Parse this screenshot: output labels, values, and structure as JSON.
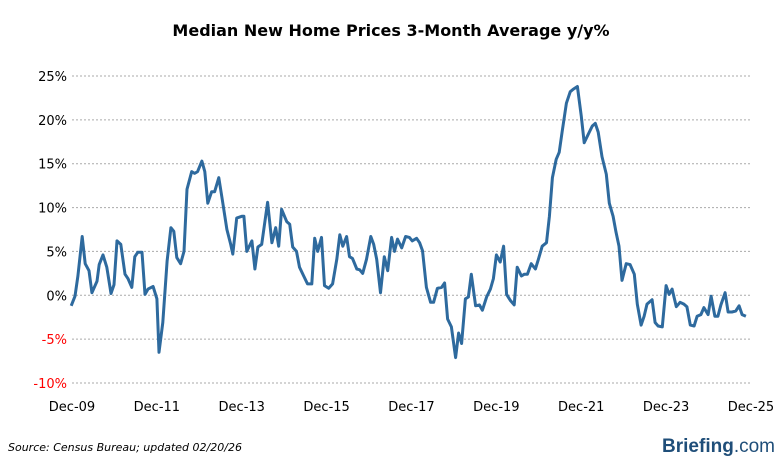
{
  "chart_data": {
    "type": "line",
    "title": "Median New Home Prices 3-Month Average y/y%",
    "xlabel": "",
    "ylabel": "",
    "xlim": [
      2009.92,
      2025.92
    ],
    "ylim": [
      -10,
      25
    ],
    "grid": true,
    "yticks": [
      {
        "value": 25,
        "label": "25%"
      },
      {
        "value": 20,
        "label": "20%"
      },
      {
        "value": 15,
        "label": "15%"
      },
      {
        "value": 10,
        "label": "10%"
      },
      {
        "value": 5,
        "label": "5%"
      },
      {
        "value": 0,
        "label": "0%"
      },
      {
        "value": -5,
        "label": "-5%"
      },
      {
        "value": -10,
        "label": "-10%"
      }
    ],
    "xticks": [
      {
        "value": 2009.92,
        "label": "Dec-09"
      },
      {
        "value": 2011.92,
        "label": "Dec-11"
      },
      {
        "value": 2013.92,
        "label": "Dec-13"
      },
      {
        "value": 2015.92,
        "label": "Dec-15"
      },
      {
        "value": 2017.92,
        "label": "Dec-17"
      },
      {
        "value": 2019.92,
        "label": "Dec-19"
      },
      {
        "value": 2021.92,
        "label": "Dec-21"
      },
      {
        "value": 2023.92,
        "label": "Dec-23"
      },
      {
        "value": 2025.92,
        "label": "Dec-25"
      }
    ],
    "colors": {
      "line": "#2e6a9e",
      "positive_tick": "#000000",
      "negative_tick": "#ff0000",
      "grid": "#aaaaaa"
    },
    "series": [
      {
        "points": [
          [
            2009.9,
            -1.2
          ],
          [
            2009.99,
            -0.1
          ],
          [
            2010.06,
            2.2
          ],
          [
            2010.16,
            6.7
          ],
          [
            2010.23,
            3.6
          ],
          [
            2010.32,
            2.8
          ],
          [
            2010.39,
            0.3
          ],
          [
            2010.51,
            1.6
          ],
          [
            2010.56,
            3.5
          ],
          [
            2010.65,
            4.6
          ],
          [
            2010.74,
            3.2
          ],
          [
            2010.84,
            0.2
          ],
          [
            2010.91,
            1.2
          ],
          [
            2010.98,
            6.2
          ],
          [
            2011.07,
            5.8
          ],
          [
            2011.17,
            2.4
          ],
          [
            2011.24,
            1.9
          ],
          [
            2011.33,
            0.9
          ],
          [
            2011.4,
            4.4
          ],
          [
            2011.47,
            4.9
          ],
          [
            2011.57,
            4.9
          ],
          [
            2011.64,
            0.1
          ],
          [
            2011.71,
            0.7
          ],
          [
            2011.83,
            1.0
          ],
          [
            2011.92,
            -0.4
          ],
          [
            2011.97,
            -6.5
          ],
          [
            2012.06,
            -3.1
          ],
          [
            2012.16,
            3.9
          ],
          [
            2012.25,
            7.7
          ],
          [
            2012.32,
            7.3
          ],
          [
            2012.39,
            4.3
          ],
          [
            2012.48,
            3.6
          ],
          [
            2012.56,
            5.0
          ],
          [
            2012.63,
            12.1
          ],
          [
            2012.74,
            14.1
          ],
          [
            2012.81,
            13.9
          ],
          [
            2012.88,
            14.1
          ],
          [
            2012.98,
            15.3
          ],
          [
            2013.05,
            14.1
          ],
          [
            2013.12,
            10.5
          ],
          [
            2013.21,
            11.8
          ],
          [
            2013.28,
            11.8
          ],
          [
            2013.38,
            13.4
          ],
          [
            2013.47,
            10.6
          ],
          [
            2013.57,
            7.5
          ],
          [
            2013.66,
            5.8
          ],
          [
            2013.71,
            4.7
          ],
          [
            2013.8,
            8.8
          ],
          [
            2013.92,
            9.0
          ],
          [
            2013.97,
            9.0
          ],
          [
            2014.04,
            5.0
          ],
          [
            2014.16,
            6.2
          ],
          [
            2014.23,
            3.0
          ],
          [
            2014.3,
            5.5
          ],
          [
            2014.39,
            5.8
          ],
          [
            2014.53,
            10.6
          ],
          [
            2014.63,
            6.0
          ],
          [
            2014.72,
            7.7
          ],
          [
            2014.79,
            5.6
          ],
          [
            2014.86,
            9.8
          ],
          [
            2014.98,
            8.4
          ],
          [
            2015.05,
            8.1
          ],
          [
            2015.12,
            5.5
          ],
          [
            2015.21,
            5.0
          ],
          [
            2015.28,
            3.2
          ],
          [
            2015.38,
            2.2
          ],
          [
            2015.47,
            1.3
          ],
          [
            2015.57,
            1.3
          ],
          [
            2015.64,
            6.5
          ],
          [
            2015.71,
            5.0
          ],
          [
            2015.8,
            6.6
          ],
          [
            2015.87,
            1.1
          ],
          [
            2015.97,
            0.8
          ],
          [
            2016.06,
            1.3
          ],
          [
            2016.16,
            4.1
          ],
          [
            2016.23,
            6.9
          ],
          [
            2016.3,
            5.6
          ],
          [
            2016.39,
            6.7
          ],
          [
            2016.46,
            4.4
          ],
          [
            2016.53,
            4.2
          ],
          [
            2016.63,
            3.0
          ],
          [
            2016.7,
            2.9
          ],
          [
            2016.77,
            2.5
          ],
          [
            2016.86,
            4.1
          ],
          [
            2016.96,
            6.7
          ],
          [
            2017.03,
            5.8
          ],
          [
            2017.1,
            4.1
          ],
          [
            2017.19,
            0.3
          ],
          [
            2017.28,
            4.4
          ],
          [
            2017.36,
            2.8
          ],
          [
            2017.45,
            6.6
          ],
          [
            2017.52,
            5.0
          ],
          [
            2017.59,
            6.4
          ],
          [
            2017.69,
            5.4
          ],
          [
            2017.78,
            6.7
          ],
          [
            2017.87,
            6.6
          ],
          [
            2017.94,
            6.2
          ],
          [
            2018.04,
            6.5
          ],
          [
            2018.11,
            6.0
          ],
          [
            2018.18,
            5.1
          ],
          [
            2018.27,
            0.9
          ],
          [
            2018.37,
            -0.8
          ],
          [
            2018.44,
            -0.8
          ],
          [
            2018.53,
            0.8
          ],
          [
            2018.63,
            0.9
          ],
          [
            2018.7,
            1.4
          ],
          [
            2018.77,
            -2.7
          ],
          [
            2018.86,
            -3.6
          ],
          [
            2018.96,
            -7.1
          ],
          [
            2019.03,
            -4.3
          ],
          [
            2019.1,
            -5.5
          ],
          [
            2019.19,
            -0.4
          ],
          [
            2019.26,
            -0.2
          ],
          [
            2019.33,
            2.4
          ],
          [
            2019.43,
            -1.2
          ],
          [
            2019.52,
            -1.1
          ],
          [
            2019.59,
            -1.7
          ],
          [
            2019.69,
            -0.2
          ],
          [
            2019.78,
            0.7
          ],
          [
            2019.85,
            1.9
          ],
          [
            2019.92,
            4.6
          ],
          [
            2020.01,
            3.8
          ],
          [
            2020.09,
            5.6
          ],
          [
            2020.16,
            0.1
          ],
          [
            2020.25,
            -0.6
          ],
          [
            2020.34,
            -1.1
          ],
          [
            2020.41,
            3.2
          ],
          [
            2020.51,
            2.2
          ],
          [
            2020.58,
            2.4
          ],
          [
            2020.65,
            2.4
          ],
          [
            2020.74,
            3.6
          ],
          [
            2020.84,
            3.0
          ],
          [
            2020.91,
            4.1
          ],
          [
            2021.0,
            5.6
          ],
          [
            2021.1,
            6.0
          ],
          [
            2021.17,
            9.0
          ],
          [
            2021.24,
            13.4
          ],
          [
            2021.33,
            15.5
          ],
          [
            2021.4,
            16.3
          ],
          [
            2021.47,
            18.7
          ],
          [
            2021.57,
            21.9
          ],
          [
            2021.66,
            23.2
          ],
          [
            2021.73,
            23.5
          ],
          [
            2021.83,
            23.8
          ],
          [
            2021.92,
            20.4
          ],
          [
            2021.99,
            17.4
          ],
          [
            2022.11,
            18.6
          ],
          [
            2022.18,
            19.3
          ],
          [
            2022.25,
            19.6
          ],
          [
            2022.32,
            18.6
          ],
          [
            2022.41,
            15.8
          ],
          [
            2022.51,
            13.8
          ],
          [
            2022.58,
            10.5
          ],
          [
            2022.67,
            9.0
          ],
          [
            2022.74,
            7.2
          ],
          [
            2022.81,
            5.6
          ],
          [
            2022.88,
            1.7
          ],
          [
            2022.98,
            3.6
          ],
          [
            2023.07,
            3.5
          ],
          [
            2023.17,
            2.4
          ],
          [
            2023.24,
            -1.0
          ],
          [
            2023.33,
            -3.4
          ],
          [
            2023.4,
            -2.4
          ],
          [
            2023.47,
            -1.0
          ],
          [
            2023.59,
            -0.5
          ],
          [
            2023.66,
            -3.1
          ],
          [
            2023.73,
            -3.5
          ],
          [
            2023.83,
            -3.6
          ],
          [
            2023.92,
            1.1
          ],
          [
            2023.99,
            0.1
          ],
          [
            2024.06,
            0.7
          ],
          [
            2024.16,
            -1.3
          ],
          [
            2024.25,
            -0.8
          ],
          [
            2024.34,
            -1.0
          ],
          [
            2024.41,
            -1.3
          ],
          [
            2024.49,
            -3.4
          ],
          [
            2024.58,
            -3.5
          ],
          [
            2024.65,
            -2.4
          ],
          [
            2024.74,
            -2.2
          ],
          [
            2024.81,
            -1.4
          ],
          [
            2024.91,
            -2.2
          ],
          [
            2024.98,
            -0.1
          ],
          [
            2025.07,
            -2.4
          ],
          [
            2025.14,
            -2.4
          ],
          [
            2025.21,
            -1.1
          ],
          [
            2025.31,
            0.3
          ],
          [
            2025.38,
            -1.9
          ],
          [
            2025.47,
            -1.9
          ],
          [
            2025.56,
            -1.8
          ],
          [
            2025.64,
            -1.2
          ],
          [
            2025.71,
            -2.2
          ],
          [
            2025.8,
            -2.4
          ]
        ]
      }
    ]
  },
  "footer": {
    "source": "Source:  Census Bureau;  updated  02/20/26",
    "logo": "Briefing.com"
  }
}
